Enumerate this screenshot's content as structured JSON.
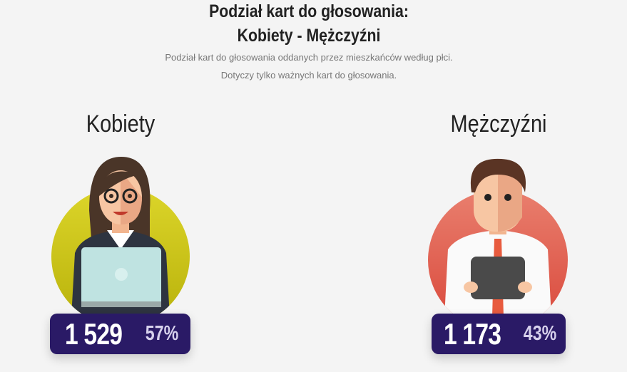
{
  "header": {
    "title_line1": "Podział kart do głosowania:",
    "title_line2": "Kobiety - Mężczyźni",
    "subtitle_line1": "Podział kart do głosowania oddanych przez mieszkańców według płci.",
    "subtitle_line2": "Dotyczy tylko ważnych kart do głosowania."
  },
  "women": {
    "label": "Kobiety",
    "count": "1 529",
    "percent": "57%",
    "circle_color": "#d0cc1e",
    "icon": "woman-with-laptop-icon"
  },
  "men": {
    "label": "Mężczyźni",
    "count": "1 173",
    "percent": "43%",
    "circle_color": "#e8685a",
    "icon": "man-with-tablet-icon"
  },
  "colors": {
    "badge": "#2a1a66",
    "background": "#f4f4f4"
  }
}
